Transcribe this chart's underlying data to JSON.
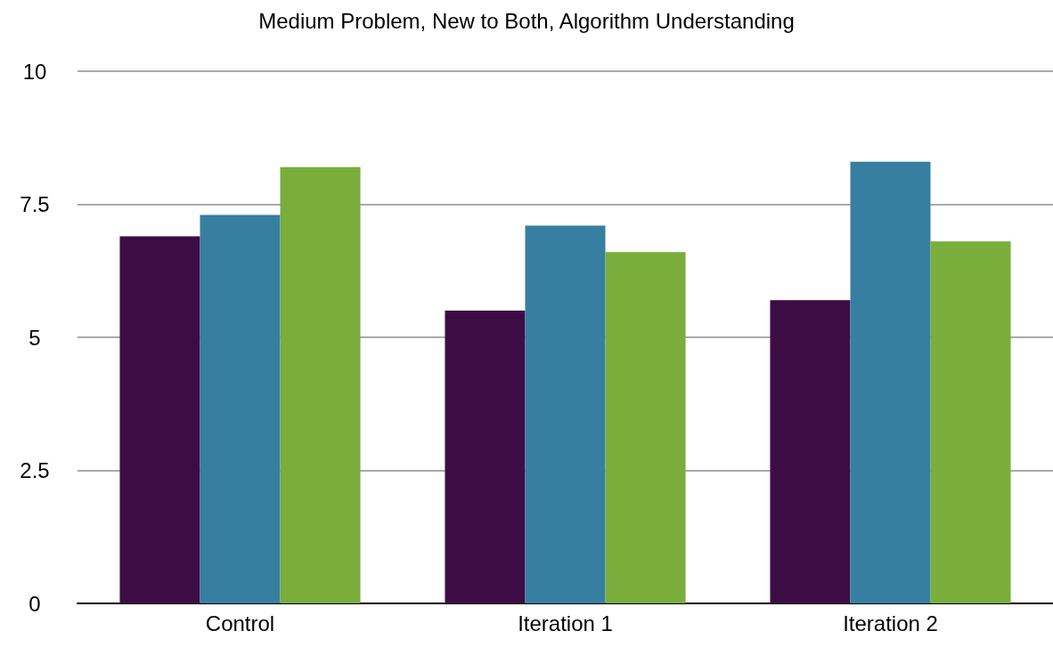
{
  "chart_data": {
    "type": "bar",
    "title": "Medium Problem, New to Both, Algorithm Understanding",
    "categories": [
      "Control",
      "Iteration 1",
      "Iteration 2"
    ],
    "series": [
      {
        "color": "#3d0c45",
        "values": [
          6.9,
          5.5,
          5.7
        ]
      },
      {
        "color": "#377fa1",
        "values": [
          7.3,
          7.1,
          8.3
        ]
      },
      {
        "color": "#79ad3c",
        "values": [
          8.2,
          6.6,
          6.8
        ]
      }
    ],
    "ylim": [
      0,
      10
    ],
    "yticks": [
      0,
      2.5,
      5,
      7.5,
      10
    ],
    "grid": "y"
  }
}
